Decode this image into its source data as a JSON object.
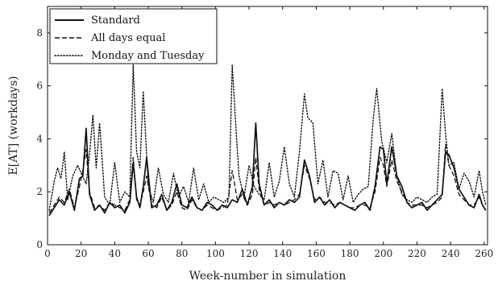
{
  "chart_data": {
    "type": "line",
    "title": "",
    "xlabel": "Week-number in simulation",
    "ylabel": "E[AT] (workdays)",
    "xlim": [
      0,
      262
    ],
    "ylim": [
      0,
      9
    ],
    "xticks": [
      0,
      20,
      40,
      60,
      80,
      100,
      120,
      140,
      160,
      180,
      200,
      220,
      240,
      260
    ],
    "yticks": [
      0,
      2,
      4,
      6,
      8
    ],
    "grid": false,
    "legend_position": "top-left",
    "series": [
      {
        "name": "Standard",
        "style": "solid",
        "color": "#111111",
        "x": [
          1,
          4,
          7,
          10,
          13,
          16,
          19,
          21,
          23,
          25,
          28,
          31,
          34,
          37,
          40,
          43,
          46,
          49,
          51,
          53,
          55,
          57,
          59,
          62,
          65,
          68,
          71,
          74,
          77,
          80,
          83,
          86,
          89,
          92,
          95,
          98,
          101,
          104,
          107,
          110,
          113,
          116,
          119,
          122,
          124,
          126,
          129,
          132,
          135,
          138,
          141,
          144,
          147,
          150,
          153,
          156,
          159,
          162,
          165,
          168,
          171,
          174,
          177,
          180,
          183,
          186,
          189,
          192,
          195,
          198,
          200,
          202,
          205,
          208,
          211,
          214,
          217,
          220,
          223,
          226,
          229,
          232,
          235,
          237,
          239,
          242,
          245,
          248,
          251,
          254,
          257,
          259,
          261
        ],
        "values": [
          1.1,
          1.4,
          1.7,
          1.5,
          2.0,
          1.3,
          2.5,
          2.6,
          4.4,
          1.9,
          1.3,
          1.5,
          1.2,
          1.6,
          1.4,
          1.5,
          1.2,
          1.6,
          3.1,
          1.8,
          1.4,
          2.2,
          3.3,
          1.4,
          1.5,
          1.9,
          1.3,
          1.6,
          2.3,
          1.5,
          1.4,
          1.8,
          1.4,
          1.3,
          1.6,
          1.5,
          1.3,
          1.5,
          1.4,
          1.7,
          1.6,
          2.1,
          1.5,
          2.2,
          4.6,
          2.3,
          1.5,
          1.7,
          1.4,
          1.6,
          1.5,
          1.7,
          1.6,
          1.8,
          3.2,
          2.6,
          1.6,
          1.8,
          1.5,
          1.7,
          1.4,
          1.6,
          1.5,
          1.4,
          1.3,
          1.5,
          1.6,
          1.3,
          2.2,
          3.7,
          3.6,
          2.3,
          3.7,
          2.6,
          2.2,
          1.6,
          1.4,
          1.5,
          1.6,
          1.3,
          1.5,
          1.7,
          1.9,
          3.5,
          3.4,
          2.9,
          2.1,
          1.8,
          1.5,
          1.4,
          1.9,
          1.5,
          1.3
        ]
      },
      {
        "name": "All days equal",
        "style": "dashed",
        "color": "#111111",
        "x": [
          1,
          4,
          7,
          10,
          13,
          16,
          19,
          21,
          23,
          25,
          28,
          31,
          34,
          37,
          40,
          43,
          46,
          49,
          51,
          53,
          55,
          57,
          59,
          62,
          65,
          68,
          71,
          74,
          77,
          80,
          83,
          86,
          89,
          92,
          95,
          98,
          101,
          104,
          107,
          110,
          113,
          116,
          119,
          122,
          124,
          126,
          129,
          132,
          135,
          138,
          141,
          144,
          147,
          150,
          153,
          156,
          159,
          162,
          165,
          168,
          171,
          174,
          177,
          180,
          183,
          186,
          189,
          192,
          195,
          198,
          200,
          202,
          205,
          208,
          211,
          214,
          217,
          220,
          223,
          226,
          229,
          232,
          235,
          237,
          239,
          242,
          245,
          248,
          251,
          254,
          257,
          259,
          261
        ],
        "values": [
          1.2,
          1.5,
          1.8,
          1.6,
          2.1,
          1.4,
          2.2,
          2.8,
          3.6,
          2.0,
          1.4,
          1.5,
          1.3,
          1.6,
          1.5,
          1.4,
          1.3,
          1.7,
          3.3,
          1.7,
          1.5,
          2.0,
          2.6,
          1.5,
          1.4,
          1.8,
          1.3,
          1.5,
          2.0,
          1.4,
          1.3,
          1.7,
          1.4,
          1.3,
          1.5,
          1.4,
          1.3,
          1.4,
          1.5,
          2.8,
          1.7,
          1.9,
          1.5,
          1.9,
          3.3,
          2.1,
          1.5,
          1.6,
          1.5,
          1.6,
          1.5,
          1.6,
          1.7,
          1.9,
          3.0,
          2.5,
          1.7,
          1.8,
          1.6,
          1.6,
          1.5,
          1.6,
          1.5,
          1.4,
          1.4,
          1.5,
          1.5,
          1.4,
          2.0,
          3.3,
          3.0,
          2.2,
          3.2,
          2.4,
          2.0,
          1.6,
          1.5,
          1.5,
          1.5,
          1.4,
          1.5,
          1.6,
          1.8,
          3.8,
          3.0,
          2.6,
          1.9,
          1.7,
          1.5,
          1.5,
          1.8,
          1.5,
          1.3
        ]
      },
      {
        "name": "Monday and Tuesday",
        "style": "dotted",
        "color": "#111111",
        "x": [
          1,
          4,
          6,
          8,
          10,
          12,
          15,
          18,
          20,
          23,
          25,
          27,
          29,
          31,
          34,
          37,
          40,
          43,
          46,
          49,
          51,
          53,
          55,
          57,
          60,
          63,
          66,
          69,
          72,
          75,
          78,
          81,
          84,
          87,
          90,
          93,
          96,
          99,
          102,
          105,
          108,
          110,
          112,
          114,
          117,
          120,
          123,
          126,
          129,
          132,
          135,
          138,
          141,
          144,
          147,
          150,
          153,
          155,
          158,
          161,
          164,
          167,
          170,
          173,
          176,
          179,
          182,
          185,
          188,
          191,
          194,
          196,
          199,
          202,
          205,
          208,
          211,
          214,
          217,
          220,
          223,
          226,
          229,
          232,
          235,
          237,
          239,
          242,
          245,
          248,
          251,
          254,
          257,
          259,
          261
        ],
        "values": [
          1.3,
          2.4,
          2.9,
          2.5,
          3.5,
          1.7,
          2.6,
          3.0,
          2.7,
          2.3,
          3.4,
          4.9,
          2.9,
          4.6,
          1.8,
          1.5,
          3.1,
          1.6,
          2.0,
          1.8,
          6.8,
          3.5,
          2.9,
          5.8,
          2.2,
          1.6,
          2.9,
          1.9,
          1.6,
          2.7,
          1.8,
          2.2,
          1.6,
          2.9,
          1.7,
          2.3,
          1.6,
          1.8,
          1.7,
          1.6,
          1.8,
          6.8,
          4.6,
          2.6,
          1.8,
          3.0,
          2.2,
          1.9,
          1.7,
          3.1,
          1.8,
          2.4,
          3.7,
          2.3,
          1.8,
          3.5,
          5.7,
          4.8,
          4.6,
          2.3,
          3.2,
          1.8,
          2.8,
          2.7,
          1.7,
          2.6,
          1.6,
          1.9,
          2.1,
          2.2,
          4.8,
          5.9,
          3.9,
          3.1,
          4.2,
          2.6,
          1.9,
          1.7,
          1.6,
          1.8,
          1.7,
          1.6,
          1.8,
          1.9,
          5.9,
          4.2,
          3.0,
          3.1,
          2.1,
          2.7,
          2.4,
          1.8,
          2.8,
          2.0,
          1.5
        ]
      }
    ]
  }
}
